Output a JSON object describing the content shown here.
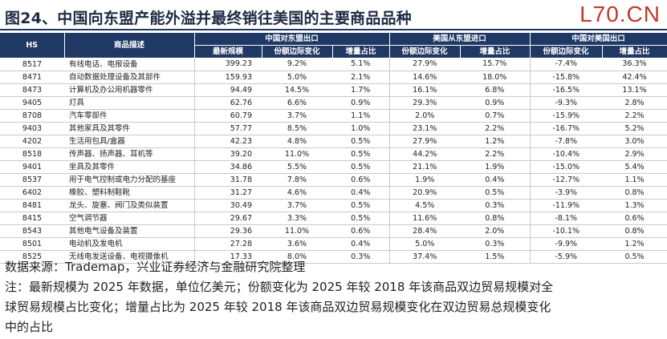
{
  "title": "图24、中国向东盟产能外溢并最终销往美国的主要商品品种",
  "brand": "L70.CN",
  "table": {
    "group_headers": {
      "hs": "HS",
      "desc": "商品描述",
      "china_asean": "中国对东盟出口",
      "us_from_asean": "美国从东盟进口",
      "china_us": "中国对美国出口"
    },
    "sub_headers": [
      "最新规模",
      "份额边际变化",
      "增量占比",
      "份额边际变化",
      "增量占比",
      "份额边际变化",
      "增量占比"
    ],
    "rows": [
      [
        "8517",
        "有线电话、电报设备",
        "399.23",
        "9.2%",
        "5.1%",
        "27.9%",
        "15.7%",
        "-7.4%",
        "36.3%"
      ],
      [
        "8471",
        "自动数据处理设备及其部件",
        "159.93",
        "5.0%",
        "2.1%",
        "14.6%",
        "18.0%",
        "-15.8%",
        "42.4%"
      ],
      [
        "8473",
        "计算机及办公用机器零件",
        "94.49",
        "14.5%",
        "1.7%",
        "16.1%",
        "6.8%",
        "-16.5%",
        "13.1%"
      ],
      [
        "9405",
        "灯具",
        "62.76",
        "6.6%",
        "0.9%",
        "29.3%",
        "0.9%",
        "-9.3%",
        "2.8%"
      ],
      [
        "8708",
        "汽车零部件",
        "60.79",
        "3.7%",
        "1.1%",
        "2.0%",
        "0.7%",
        "-15.9%",
        "2.2%"
      ],
      [
        "9403",
        "其他家具及其零件",
        "57.77",
        "8.5%",
        "1.0%",
        "23.1%",
        "2.2%",
        "-16.7%",
        "5.2%"
      ],
      [
        "4202",
        "生活用包具/盒器",
        "42.23",
        "4.8%",
        "0.5%",
        "27.9%",
        "1.2%",
        "-7.8%",
        "3.0%"
      ],
      [
        "8518",
        "传声器、扬声器、耳机等",
        "39.20",
        "11.0%",
        "0.5%",
        "44.2%",
        "2.2%",
        "-10.4%",
        "2.9%"
      ],
      [
        "9401",
        "坐具及其零件",
        "34.86",
        "5.5%",
        "0.5%",
        "21.1%",
        "1.9%",
        "-15.0%",
        "5.4%"
      ],
      [
        "8537",
        "用于电气控制或电力分配的基座",
        "31.78",
        "7.8%",
        "0.6%",
        "1.9%",
        "0.4%",
        "-12.7%",
        "1.1%"
      ],
      [
        "6402",
        "橡胶、塑料制鞋靴",
        "31.27",
        "4.6%",
        "0.4%",
        "20.9%",
        "0.5%",
        "-3.9%",
        "0.8%"
      ],
      [
        "8481",
        "龙头、旋塞、阀门及类似装置",
        "30.49",
        "3.7%",
        "0.5%",
        "4.5%",
        "0.3%",
        "-11.9%",
        "1.3%"
      ],
      [
        "8415",
        "空气调节器",
        "29.67",
        "3.3%",
        "0.5%",
        "11.6%",
        "0.8%",
        "-8.1%",
        "0.6%"
      ],
      [
        "8543",
        "其他电气设备及装置",
        "29.36",
        "11.0%",
        "0.6%",
        "28.4%",
        "2.0%",
        "-10.1%",
        "0.8%"
      ],
      [
        "8501",
        "电动机及发电机",
        "27.28",
        "3.6%",
        "0.4%",
        "5.0%",
        "0.3%",
        "-9.9%",
        "1.2%"
      ],
      [
        "8525",
        "无线电发送设备、电视摄像机",
        "17.33",
        "8.0%",
        "0.3%",
        "37.4%",
        "1.5%",
        "-5.9%",
        "0.5%"
      ]
    ]
  },
  "source": "数据来源：Trademap，兴业证券经济与金融研究院整理",
  "note_lines": [
    "注：最新规模为 2025 年数据，单位亿美元；份额变化为 2025 年较 2018 年该商品双边贸易规模对全",
    "球贸易规模占比变化；增量占比为 2025 年较 2018 年该商品双边贸易规模变化在双边贸易总规模变化",
    "中的占比"
  ]
}
